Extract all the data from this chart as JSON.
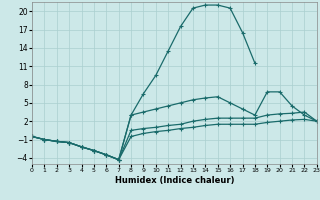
{
  "xlabel": "Humidex (Indice chaleur)",
  "background_color": "#cce8e8",
  "grid_color": "#aacfcf",
  "line_color": "#1a6b6b",
  "xlim": [
    0,
    23
  ],
  "ylim": [
    -5,
    21.5
  ],
  "xticks": [
    0,
    1,
    2,
    3,
    4,
    5,
    6,
    7,
    8,
    9,
    10,
    11,
    12,
    13,
    14,
    15,
    16,
    17,
    18,
    19,
    20,
    21,
    22,
    23
  ],
  "yticks": [
    -4,
    -1,
    2,
    5,
    8,
    11,
    14,
    17,
    20
  ],
  "line1_x": [
    0,
    1,
    2,
    3,
    4,
    5,
    6,
    7,
    8,
    9,
    10,
    11,
    12,
    13,
    14,
    15,
    16,
    17,
    18
  ],
  "line1_y": [
    -0.5,
    -1.0,
    -1.3,
    -1.5,
    -2.2,
    -2.8,
    -3.5,
    -4.3,
    3.0,
    6.5,
    9.5,
    13.5,
    17.5,
    20.5,
    21.0,
    21.0,
    20.5,
    16.5,
    11.5
  ],
  "line2_x": [
    0,
    1,
    2,
    3,
    4,
    5,
    6,
    7,
    8,
    9,
    10,
    11,
    12,
    13,
    14,
    15,
    16,
    17,
    18,
    19,
    20,
    21,
    22,
    23
  ],
  "line2_y": [
    -0.5,
    -1.0,
    -1.3,
    -1.5,
    -2.2,
    -2.8,
    -3.5,
    -4.3,
    3.0,
    3.5,
    4.0,
    4.5,
    5.0,
    5.5,
    5.8,
    6.0,
    5.0,
    4.0,
    3.0,
    6.8,
    6.8,
    4.5,
    3.0,
    2.0
  ],
  "line3_x": [
    0,
    1,
    2,
    3,
    4,
    5,
    6,
    7,
    8,
    9,
    10,
    11,
    12,
    13,
    14,
    15,
    16,
    17,
    18,
    19,
    20,
    21,
    22,
    23
  ],
  "line3_y": [
    -0.5,
    -1.0,
    -1.3,
    -1.5,
    -2.2,
    -2.8,
    -3.5,
    -4.3,
    0.5,
    0.8,
    1.0,
    1.3,
    1.5,
    2.0,
    2.3,
    2.5,
    2.5,
    2.5,
    2.5,
    3.0,
    3.2,
    3.3,
    3.5,
    2.0
  ],
  "line4_x": [
    0,
    1,
    2,
    3,
    4,
    5,
    6,
    7,
    8,
    9,
    10,
    11,
    12,
    13,
    14,
    15,
    16,
    17,
    18,
    19,
    20,
    21,
    22,
    23
  ],
  "line4_y": [
    -0.5,
    -1.0,
    -1.3,
    -1.5,
    -2.2,
    -2.8,
    -3.5,
    -4.3,
    -0.5,
    0.0,
    0.3,
    0.5,
    0.8,
    1.0,
    1.3,
    1.5,
    1.5,
    1.5,
    1.5,
    1.8,
    2.0,
    2.2,
    2.3,
    2.0
  ]
}
